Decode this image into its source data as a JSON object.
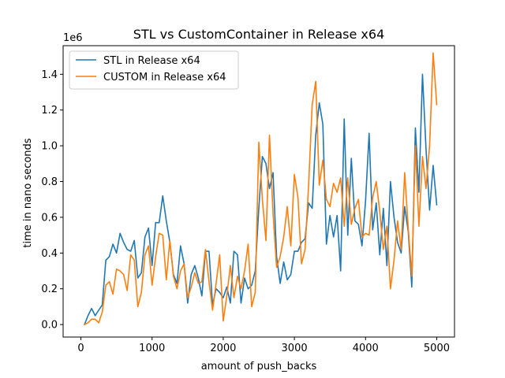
{
  "chart_data": {
    "type": "line",
    "title": "STL vs CustomContainer in Release x64",
    "xlabel": "amount of push_backs",
    "ylabel": "time in nano seconds",
    "y_offset_label": "1e6",
    "xlim": [
      -250,
      5250
    ],
    "ylim": [
      -70000,
      1560000
    ],
    "xticks": [
      0,
      1000,
      2000,
      3000,
      4000,
      5000
    ],
    "xtick_labels": [
      "0",
      "1000",
      "2000",
      "3000",
      "4000",
      "5000"
    ],
    "yticks": [
      0,
      200000,
      400000,
      600000,
      800000,
      1000000,
      1200000,
      1400000
    ],
    "ytick_labels": [
      "0.0",
      "0.2",
      "0.4",
      "0.6",
      "0.8",
      "1.0",
      "1.2",
      "1.4"
    ],
    "grid": false,
    "legend_position": "upper left",
    "x": [
      50,
      100,
      150,
      200,
      250,
      300,
      350,
      400,
      450,
      500,
      550,
      600,
      650,
      700,
      750,
      800,
      850,
      900,
      950,
      1000,
      1050,
      1100,
      1150,
      1200,
      1250,
      1300,
      1350,
      1400,
      1450,
      1500,
      1550,
      1600,
      1650,
      1700,
      1750,
      1800,
      1850,
      1900,
      1950,
      2000,
      2050,
      2100,
      2150,
      2200,
      2250,
      2300,
      2350,
      2400,
      2450,
      2500,
      2550,
      2600,
      2650,
      2700,
      2750,
      2800,
      2850,
      2900,
      2950,
      3000,
      3050,
      3100,
      3150,
      3200,
      3250,
      3300,
      3350,
      3400,
      3450,
      3500,
      3550,
      3600,
      3650,
      3700,
      3750,
      3800,
      3850,
      3900,
      3950,
      4000,
      4050,
      4100,
      4150,
      4200,
      4250,
      4300,
      4350,
      4400,
      4450,
      4500,
      4550,
      4600,
      4650,
      4700,
      4750,
      4800,
      4850,
      4900,
      4950,
      5000
    ],
    "series": [
      {
        "name": "STL in Release x64",
        "color": "#1f77b4",
        "values": [
          0,
          50000,
          90000,
          50000,
          80000,
          110000,
          360000,
          380000,
          450000,
          400000,
          510000,
          460000,
          420000,
          410000,
          470000,
          260000,
          290000,
          490000,
          540000,
          330000,
          570000,
          570000,
          720000,
          580000,
          460000,
          280000,
          230000,
          440000,
          340000,
          120000,
          280000,
          330000,
          260000,
          160000,
          410000,
          410000,
          110000,
          200000,
          180000,
          150000,
          210000,
          120000,
          410000,
          390000,
          120000,
          260000,
          200000,
          220000,
          300000,
          650000,
          940000,
          900000,
          760000,
          850000,
          380000,
          230000,
          350000,
          250000,
          280000,
          410000,
          410000,
          460000,
          480000,
          680000,
          650000,
          1060000,
          1240000,
          1120000,
          450000,
          610000,
          490000,
          610000,
          300000,
          1150000,
          500000,
          930000,
          580000,
          560000,
          440000,
          690000,
          1070000,
          530000,
          680000,
          390000,
          650000,
          330000,
          800000,
          600000,
          460000,
          400000,
          660000,
          520000,
          210000,
          1100000,
          740000,
          1400000,
          980000,
          640000,
          890000,
          670000
        ]
      },
      {
        "name": "CUSTOM in Release x64",
        "color": "#ff7f0e",
        "values": [
          0,
          10000,
          30000,
          30000,
          10000,
          70000,
          220000,
          240000,
          170000,
          310000,
          300000,
          280000,
          190000,
          390000,
          360000,
          100000,
          180000,
          390000,
          440000,
          220000,
          380000,
          510000,
          500000,
          250000,
          470000,
          270000,
          200000,
          300000,
          340000,
          150000,
          210000,
          290000,
          230000,
          240000,
          420000,
          240000,
          80000,
          230000,
          390000,
          20000,
          160000,
          330000,
          150000,
          270000,
          200000,
          300000,
          450000,
          100000,
          180000,
          1020000,
          700000,
          470000,
          1060000,
          620000,
          320000,
          380000,
          490000,
          660000,
          440000,
          840000,
          710000,
          340000,
          420000,
          780000,
          1230000,
          1360000,
          780000,
          920000,
          700000,
          660000,
          790000,
          740000,
          820000,
          550000,
          820000,
          560000,
          650000,
          700000,
          490000,
          510000,
          500000,
          710000,
          800000,
          630000,
          420000,
          550000,
          200000,
          360000,
          580000,
          420000,
          850000,
          540000,
          270000,
          1000000,
          550000,
          940000,
          760000,
          1000000,
          1520000,
          1230000
        ]
      }
    ]
  }
}
